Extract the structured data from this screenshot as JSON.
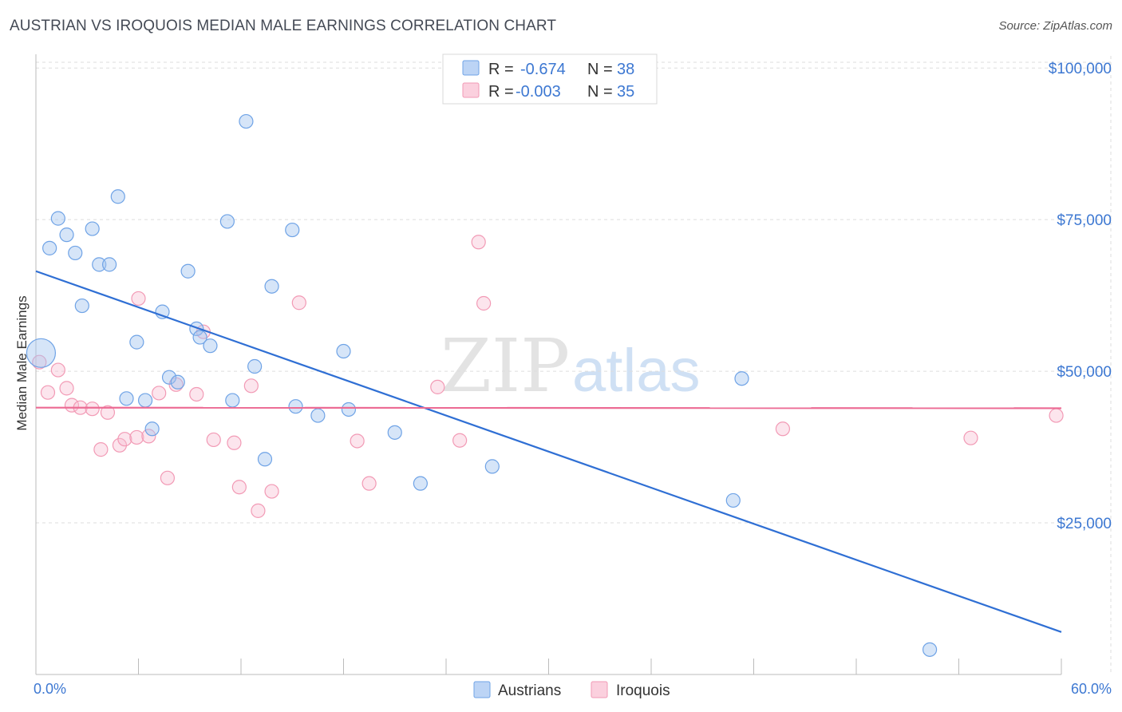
{
  "header": {
    "title": "AUSTRIAN VS IROQUOIS MEDIAN MALE EARNINGS CORRELATION CHART",
    "source": "Source: ZipAtlas.com"
  },
  "watermark": {
    "zip": "ZIP",
    "atlas": "atlas"
  },
  "legend": {
    "series": [
      {
        "r_label": "R =",
        "r_value": "-0.674",
        "n_label": "N =",
        "n_value": "38",
        "color": "#6fa3e6"
      },
      {
        "r_label": "R =",
        "r_value": "-0.003",
        "n_label": "N =",
        "n_value": "35",
        "color": "#f29ab5"
      }
    ]
  },
  "bottom_legend": {
    "austrians": "Austrians",
    "iroquois": "Iroquois"
  },
  "chart_data": {
    "type": "scatter",
    "title": "AUSTRIAN VS IROQUOIS MEDIAN MALE EARNINGS CORRELATION CHART",
    "xlabel": "",
    "ylabel": "Median Male Earnings",
    "xlim": [
      0,
      60
    ],
    "ylim": [
      0,
      102000
    ],
    "x_tick_labels": [
      "0.0%",
      "60.0%"
    ],
    "y_ticks": [
      25000,
      50000,
      75000,
      100000
    ],
    "y_tick_labels": [
      "$25,000",
      "$50,000",
      "$75,000",
      "$100,000"
    ],
    "grid": true,
    "series": [
      {
        "name": "Austrians",
        "color": "#6fa3e6",
        "trend": {
          "x": [
            0,
            60
          ],
          "y": [
            66500,
            7000
          ]
        },
        "points": [
          {
            "x": 0.3,
            "y": 53000,
            "big": true
          },
          {
            "x": 0.8,
            "y": 70300
          },
          {
            "x": 1.3,
            "y": 75200
          },
          {
            "x": 1.8,
            "y": 72500
          },
          {
            "x": 2.3,
            "y": 69500
          },
          {
            "x": 2.7,
            "y": 60800
          },
          {
            "x": 3.3,
            "y": 73500
          },
          {
            "x": 3.7,
            "y": 67600
          },
          {
            "x": 4.3,
            "y": 67600
          },
          {
            "x": 4.8,
            "y": 78800
          },
          {
            "x": 5.3,
            "y": 45500
          },
          {
            "x": 5.9,
            "y": 54800
          },
          {
            "x": 6.4,
            "y": 45200
          },
          {
            "x": 6.8,
            "y": 40500
          },
          {
            "x": 7.4,
            "y": 59800
          },
          {
            "x": 7.8,
            "y": 49000
          },
          {
            "x": 8.3,
            "y": 48200
          },
          {
            "x": 8.9,
            "y": 66500
          },
          {
            "x": 9.4,
            "y": 57000
          },
          {
            "x": 9.6,
            "y": 55600
          },
          {
            "x": 10.2,
            "y": 54200
          },
          {
            "x": 11.2,
            "y": 74700
          },
          {
            "x": 11.5,
            "y": 45200
          },
          {
            "x": 12.3,
            "y": 91200
          },
          {
            "x": 12.8,
            "y": 50800
          },
          {
            "x": 13.4,
            "y": 35500
          },
          {
            "x": 13.8,
            "y": 64000
          },
          {
            "x": 15.0,
            "y": 73300
          },
          {
            "x": 15.2,
            "y": 44200
          },
          {
            "x": 16.5,
            "y": 42700
          },
          {
            "x": 18.0,
            "y": 53300
          },
          {
            "x": 18.3,
            "y": 43700
          },
          {
            "x": 21.0,
            "y": 39900
          },
          {
            "x": 22.5,
            "y": 31500
          },
          {
            "x": 26.7,
            "y": 34300
          },
          {
            "x": 41.3,
            "y": 48800
          },
          {
            "x": 40.8,
            "y": 28700
          },
          {
            "x": 52.3,
            "y": 4100
          }
        ]
      },
      {
        "name": "Iroquois",
        "color": "#f29ab5",
        "trend": {
          "x": [
            0,
            60
          ],
          "y": [
            44000,
            43900
          ]
        },
        "points": [
          {
            "x": 0.2,
            "y": 51500
          },
          {
            "x": 0.7,
            "y": 46500
          },
          {
            "x": 1.3,
            "y": 50200
          },
          {
            "x": 1.8,
            "y": 47200
          },
          {
            "x": 2.1,
            "y": 44400
          },
          {
            "x": 2.6,
            "y": 44000
          },
          {
            "x": 3.3,
            "y": 43800
          },
          {
            "x": 3.8,
            "y": 37100
          },
          {
            "x": 4.2,
            "y": 43200
          },
          {
            "x": 4.9,
            "y": 37800
          },
          {
            "x": 5.2,
            "y": 38800
          },
          {
            "x": 5.9,
            "y": 39100
          },
          {
            "x": 6.0,
            "y": 62000
          },
          {
            "x": 6.6,
            "y": 39300
          },
          {
            "x": 7.2,
            "y": 46400
          },
          {
            "x": 7.7,
            "y": 32400
          },
          {
            "x": 8.2,
            "y": 47800
          },
          {
            "x": 9.4,
            "y": 46200
          },
          {
            "x": 9.8,
            "y": 56500
          },
          {
            "x": 10.4,
            "y": 38700
          },
          {
            "x": 11.6,
            "y": 38200
          },
          {
            "x": 11.9,
            "y": 30900
          },
          {
            "x": 12.6,
            "y": 47600
          },
          {
            "x": 13.0,
            "y": 27000
          },
          {
            "x": 13.8,
            "y": 30200
          },
          {
            "x": 15.4,
            "y": 61300
          },
          {
            "x": 18.8,
            "y": 38500
          },
          {
            "x": 19.5,
            "y": 31500
          },
          {
            "x": 23.5,
            "y": 47400
          },
          {
            "x": 24.8,
            "y": 38600
          },
          {
            "x": 25.9,
            "y": 71300
          },
          {
            "x": 26.2,
            "y": 61200
          },
          {
            "x": 43.7,
            "y": 40500
          },
          {
            "x": 54.7,
            "y": 39000
          },
          {
            "x": 59.7,
            "y": 42700
          }
        ]
      }
    ]
  }
}
